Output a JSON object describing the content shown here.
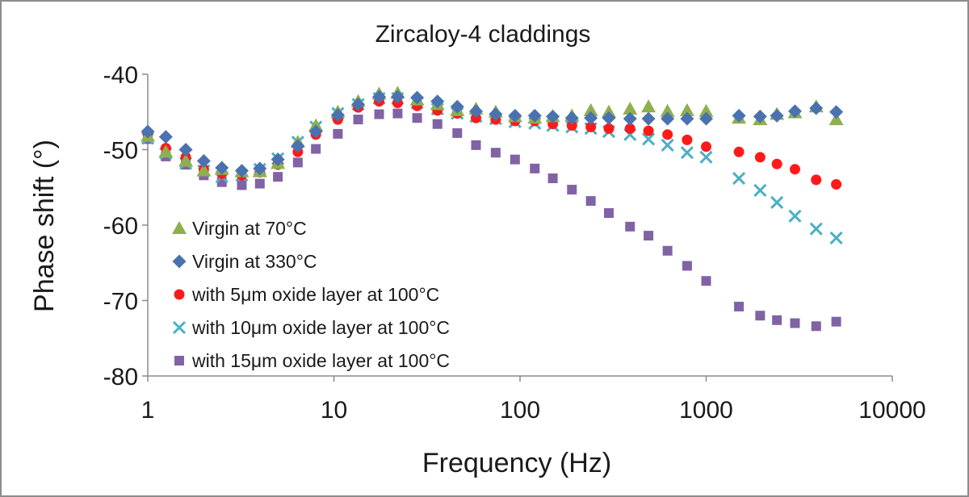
{
  "chart_data": {
    "type": "scatter",
    "title": "Zircaloy-4 claddings",
    "xlabel": "Frequency (Hz)",
    "ylabel": "Phase shift (°)",
    "xscale": "log",
    "xlim": [
      1,
      10000
    ],
    "ylim": [
      -80,
      -40
    ],
    "x_tick_labels": [
      "1",
      "10",
      "100",
      "1000",
      "10000"
    ],
    "y_tick_labels": [
      "-40",
      "-50",
      "-60",
      "-70",
      "-80"
    ],
    "x_ticks": [
      1,
      10,
      100,
      1000,
      10000
    ],
    "y_ticks": [
      -40,
      -50,
      -60,
      -70,
      -80
    ],
    "legend_position": "bottom-left",
    "grid": false,
    "series": [
      {
        "name": "Virgin at 70°C",
        "marker": "triangle",
        "color": "#8FAF4F",
        "x": [
          1,
          1.25,
          1.6,
          2,
          2.5,
          3.2,
          4,
          5,
          6.4,
          8,
          10.5,
          13.5,
          17.5,
          22,
          28,
          36,
          46,
          58,
          74,
          94,
          120,
          150,
          190,
          240,
          300,
          390,
          490,
          620,
          790,
          1000,
          1500,
          1950,
          2400,
          3000,
          3900,
          5000
        ],
        "y": [
          -48.2,
          -50.3,
          -51.5,
          -52.8,
          -52.6,
          -52.9,
          -52.9,
          -51.8,
          -49.0,
          -46.8,
          -45.0,
          -43.6,
          -42.6,
          -42.5,
          -43.4,
          -44.0,
          -44.8,
          -44.6,
          -45.0,
          -45.6,
          -45.8,
          -45.6,
          -45.5,
          -44.8,
          -45.0,
          -44.6,
          -44.3,
          -44.9,
          -44.8,
          -44.9,
          -45.8,
          -46.0,
          -45.3,
          -45.1,
          -44.3,
          -46.0
        ]
      },
      {
        "name": "Virgin at 330°C",
        "marker": "diamond",
        "color": "#4A72B0",
        "x": [
          1,
          1.25,
          1.6,
          2,
          2.5,
          3.2,
          4,
          5,
          6.4,
          8,
          10.5,
          13.5,
          17.5,
          22,
          28,
          36,
          46,
          58,
          74,
          94,
          120,
          150,
          190,
          240,
          300,
          390,
          490,
          620,
          790,
          1000,
          1500,
          1950,
          2400,
          3000,
          3900,
          5000
        ],
        "y": [
          -47.6,
          -48.3,
          -50.0,
          -51.5,
          -52.4,
          -52.8,
          -52.5,
          -51.3,
          -49.5,
          -47.6,
          -45.4,
          -44.0,
          -43.0,
          -43.0,
          -43.1,
          -43.6,
          -44.3,
          -44.9,
          -45.3,
          -45.5,
          -45.5,
          -45.6,
          -45.8,
          -45.8,
          -45.8,
          -45.9,
          -45.9,
          -45.9,
          -45.9,
          -45.9,
          -45.5,
          -45.6,
          -45.5,
          -44.9,
          -44.5,
          -45.0
        ]
      },
      {
        "name": "with 5μm oxide layer at 100°C",
        "marker": "circle",
        "color": "#FF1A1A",
        "x": [
          1,
          1.25,
          1.6,
          2,
          2.5,
          3.2,
          4,
          5,
          6.4,
          8,
          10.5,
          13.5,
          17.5,
          22,
          28,
          36,
          46,
          58,
          74,
          94,
          120,
          150,
          190,
          240,
          300,
          390,
          490,
          620,
          790,
          1000,
          1500,
          1950,
          2400,
          3000,
          3900,
          5000
        ],
        "y": [
          -47.8,
          -49.8,
          -51.0,
          -52.6,
          -53.2,
          -53.4,
          -53.0,
          -52.0,
          -50.3,
          -48.0,
          -46.0,
          -44.4,
          -43.6,
          -43.8,
          -44.2,
          -44.8,
          -45.2,
          -45.8,
          -46.0,
          -46.2,
          -46.2,
          -46.6,
          -46.8,
          -47.0,
          -47.2,
          -47.2,
          -47.5,
          -48.0,
          -48.7,
          -49.6,
          -50.3,
          -51.0,
          -51.9,
          -52.6,
          -54.0,
          -54.6
        ]
      },
      {
        "name": "with 10μm oxide layer at 100°C",
        "marker": "cross",
        "color": "#4BAFC4",
        "x": [
          1,
          1.25,
          1.6,
          2,
          2.5,
          3.2,
          4,
          5,
          6.4,
          8,
          10.5,
          13.5,
          17.5,
          22,
          28,
          36,
          46,
          58,
          74,
          94,
          120,
          150,
          190,
          240,
          300,
          390,
          490,
          620,
          790,
          1000,
          1500,
          1950,
          2400,
          3000,
          3900,
          5000
        ],
        "y": [
          -48.5,
          -50.5,
          -51.8,
          -52.8,
          -53.6,
          -53.4,
          -52.6,
          -51.2,
          -49.0,
          -47.0,
          -45.2,
          -44.0,
          -43.2,
          -43.2,
          -43.8,
          -44.6,
          -45.2,
          -45.6,
          -45.9,
          -46.3,
          -46.5,
          -46.8,
          -47.0,
          -47.2,
          -47.6,
          -48.0,
          -48.6,
          -49.4,
          -50.4,
          -51.0,
          -53.8,
          -55.4,
          -57.0,
          -58.8,
          -60.5,
          -61.7
        ]
      },
      {
        "name": "with 15μm oxide layer at 100°C",
        "marker": "square",
        "color": "#8063A5",
        "x": [
          1,
          1.25,
          1.6,
          2,
          2.5,
          3.2,
          4,
          5,
          6.4,
          8,
          10.5,
          13.5,
          17.5,
          22,
          28,
          36,
          46,
          58,
          74,
          94,
          120,
          150,
          190,
          240,
          300,
          390,
          490,
          620,
          790,
          1000,
          1500,
          1950,
          2400,
          3000,
          3900,
          5000
        ],
        "y": [
          -48.6,
          -50.9,
          -52.0,
          -53.4,
          -54.3,
          -54.7,
          -54.5,
          -53.6,
          -51.7,
          -49.9,
          -47.9,
          -46.0,
          -45.3,
          -45.2,
          -45.8,
          -46.6,
          -47.8,
          -49.4,
          -50.4,
          -51.3,
          -52.5,
          -53.8,
          -55.3,
          -56.8,
          -58.4,
          -60.2,
          -61.4,
          -63.4,
          -65.4,
          -67.4,
          -70.8,
          -72.0,
          -72.6,
          -73.0,
          -73.4,
          -72.8
        ]
      }
    ]
  }
}
